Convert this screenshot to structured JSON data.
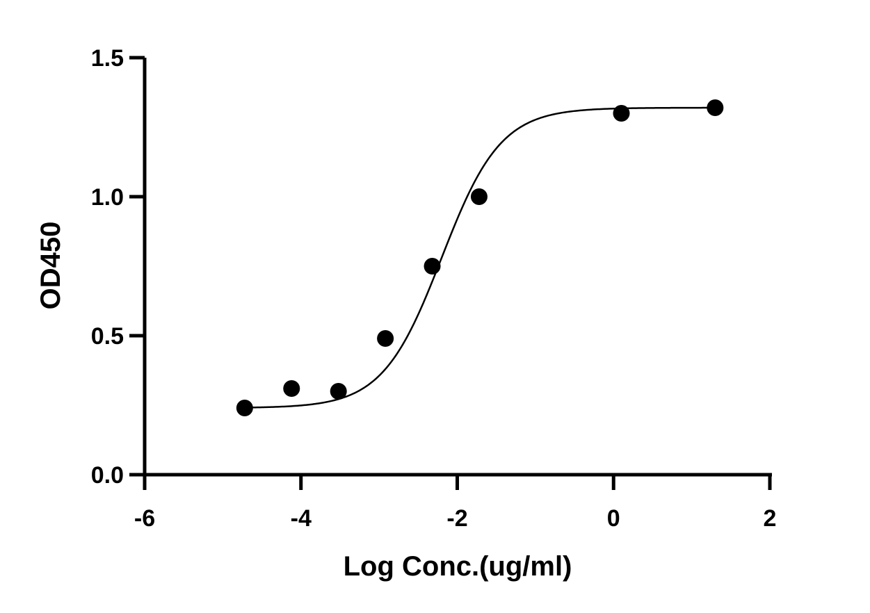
{
  "chart_data": {
    "type": "scatter",
    "xlabel": "Log Conc.(ug/ml)",
    "ylabel": "OD450",
    "xlim": [
      -6,
      2
    ],
    "ylim": [
      0,
      1.5
    ],
    "x_ticks": [
      -6,
      -4,
      -2,
      0,
      2
    ],
    "y_ticks": [
      0.0,
      0.5,
      1.0,
      1.5
    ],
    "x_tick_labels": [
      "-6",
      "-4",
      "-2",
      "0",
      "2"
    ],
    "y_tick_labels": [
      "0.0",
      "0.5",
      "1.0",
      "1.5"
    ],
    "grid": false,
    "points": [
      {
        "x": -4.72,
        "y": 0.24
      },
      {
        "x": -4.12,
        "y": 0.31
      },
      {
        "x": -3.52,
        "y": 0.3
      },
      {
        "x": -2.92,
        "y": 0.49
      },
      {
        "x": -2.32,
        "y": 0.75
      },
      {
        "x": -1.72,
        "y": 1.0
      },
      {
        "x": 0.1,
        "y": 1.3
      },
      {
        "x": 1.3,
        "y": 1.32
      }
    ],
    "fit_curve": {
      "model": "4PL sigmoid",
      "bottom": 0.24,
      "top": 1.32,
      "log_ec50": -2.2,
      "hill_slope": 1.15,
      "x_range": [
        -4.72,
        1.3
      ]
    },
    "color": "#000000"
  }
}
